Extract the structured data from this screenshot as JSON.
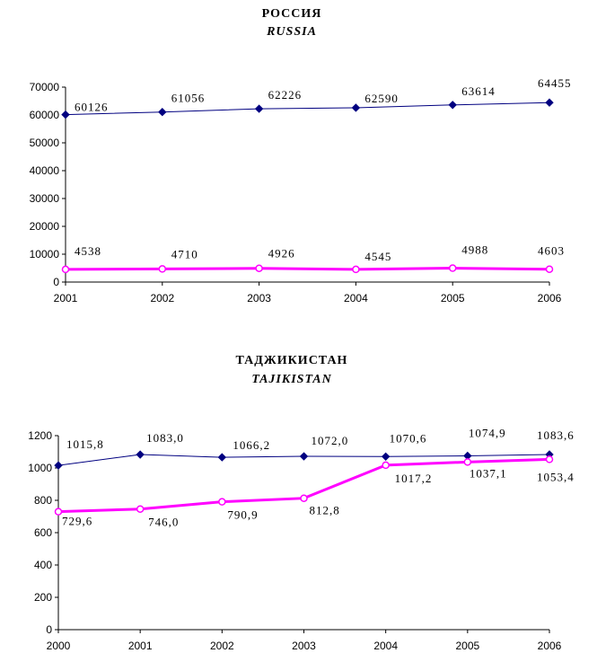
{
  "chart_data": [
    {
      "type": "line",
      "title": "РОССИЯ",
      "subtitle": "RUSSIA",
      "categories": [
        "2001",
        "2002",
        "2003",
        "2004",
        "2005",
        "2006"
      ],
      "yticks": [
        "0",
        "10000",
        "20000",
        "30000",
        "40000",
        "50000",
        "60000",
        "70000"
      ],
      "ylim": [
        0,
        70000
      ],
      "grid": false,
      "series": [
        {
          "values": [
            60126,
            61056,
            62226,
            62590,
            63614,
            64455
          ],
          "labels": [
            "60126",
            "61056",
            "62226",
            "62590",
            "63614",
            "64455"
          ],
          "color": "#000080",
          "marker": "diamond-filled"
        },
        {
          "values": [
            4538,
            4710,
            4926,
            4545,
            4988,
            4603
          ],
          "labels": [
            "4538",
            "4710",
            "4926",
            "4545",
            "4988",
            "4603"
          ],
          "color": "#ff00ff",
          "marker": "circle-open"
        }
      ]
    },
    {
      "type": "line",
      "title": "ТАДЖИКИСТАН",
      "subtitle": "TAJIKISTAN",
      "categories": [
        "2000",
        "2001",
        "2002",
        "2003",
        "2004",
        "2005",
        "2006"
      ],
      "yticks": [
        "0",
        "200",
        "400",
        "600",
        "800",
        "1000",
        "1200"
      ],
      "ylim": [
        0,
        1200
      ],
      "grid": false,
      "series": [
        {
          "values": [
            1015.8,
            1083.0,
            1066.2,
            1072.0,
            1070.6,
            1074.9,
            1083.6
          ],
          "labels": [
            "1015,8",
            "1083,0",
            "1066,2",
            "1072,0",
            "1070,6",
            "1074,9",
            "1083,6"
          ],
          "color": "#000080",
          "marker": "diamond-filled"
        },
        {
          "values": [
            729.6,
            746.0,
            790.9,
            812.8,
            1017.2,
            1037.1,
            1053.4
          ],
          "labels": [
            "729,6",
            "746,0",
            "790,9",
            "812,8",
            "1017,2",
            "1037,1",
            "1053,4"
          ],
          "color": "#ff00ff",
          "marker": "circle-open"
        }
      ]
    }
  ]
}
